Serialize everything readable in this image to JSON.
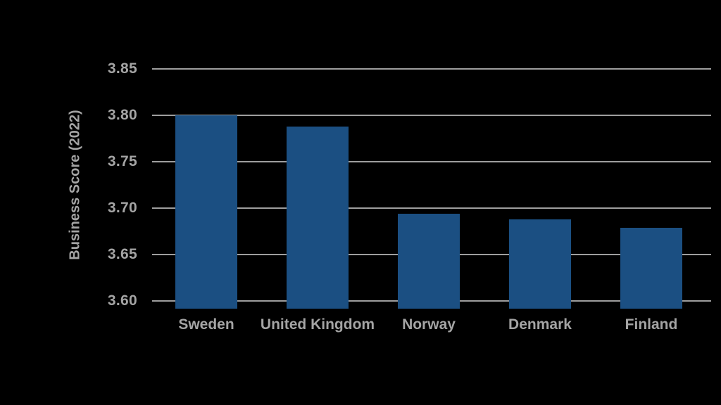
{
  "chart_data": {
    "type": "bar",
    "categories": [
      "Sweden",
      "United Kingdom",
      "Norway",
      "Denmark",
      "Finland"
    ],
    "values": [
      3.8,
      3.788,
      3.694,
      3.688,
      3.679
    ],
    "ylabel": "Business Score (2022)",
    "xlabel": "",
    "yticks": [
      3.6,
      3.65,
      3.7,
      3.75,
      3.8,
      3.85
    ],
    "ytick_format_decimals": 2,
    "ylim": [
      3.592,
      3.85
    ],
    "grid": true,
    "legend": false,
    "bar_color": "#1b4f82",
    "grid_color": "#9e9e9e",
    "text_color": "#a4a4a4",
    "background_color": "#000000"
  }
}
